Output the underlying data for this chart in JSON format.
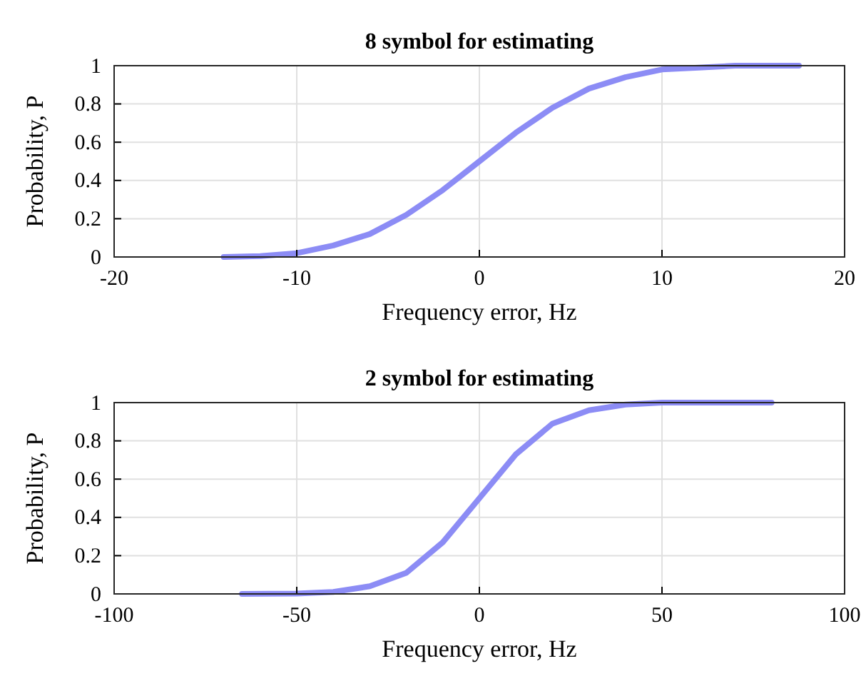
{
  "chart_data": [
    {
      "type": "line",
      "title": "8 symbol for estimating",
      "xlabel": "Frequency error, Hz",
      "ylabel": "Probability, P",
      "xlim": [
        -20,
        20
      ],
      "xticks": [
        -20,
        -10,
        0,
        10,
        20
      ],
      "ylim": [
        0,
        1
      ],
      "yticks": [
        0,
        0.2,
        0.4,
        0.6,
        0.8,
        1
      ],
      "grid": true,
      "series": [
        {
          "color": "#8c8cf5",
          "x": [
            -14,
            -12,
            -10,
            -8,
            -6,
            -4,
            -2,
            0,
            2,
            4,
            6,
            8,
            10,
            12,
            14,
            17.5
          ],
          "values": [
            0,
            0.005,
            0.02,
            0.06,
            0.12,
            0.22,
            0.35,
            0.5,
            0.65,
            0.78,
            0.88,
            0.94,
            0.98,
            0.99,
            1,
            1
          ]
        }
      ]
    },
    {
      "type": "line",
      "title": "2 symbol for estimating",
      "xlabel": "Frequency error, Hz",
      "ylabel": "Probability, P",
      "xlim": [
        -100,
        100
      ],
      "xticks": [
        -100,
        -50,
        0,
        50,
        100
      ],
      "ylim": [
        0,
        1
      ],
      "yticks": [
        0,
        0.2,
        0.4,
        0.6,
        0.8,
        1
      ],
      "grid": true,
      "series": [
        {
          "color": "#8c8cf5",
          "x": [
            -65,
            -50,
            -40,
            -30,
            -20,
            -10,
            0,
            10,
            20,
            30,
            40,
            50,
            80
          ],
          "values": [
            0,
            0.002,
            0.01,
            0.04,
            0.11,
            0.27,
            0.5,
            0.73,
            0.89,
            0.96,
            0.99,
            1,
            1
          ]
        }
      ]
    }
  ]
}
